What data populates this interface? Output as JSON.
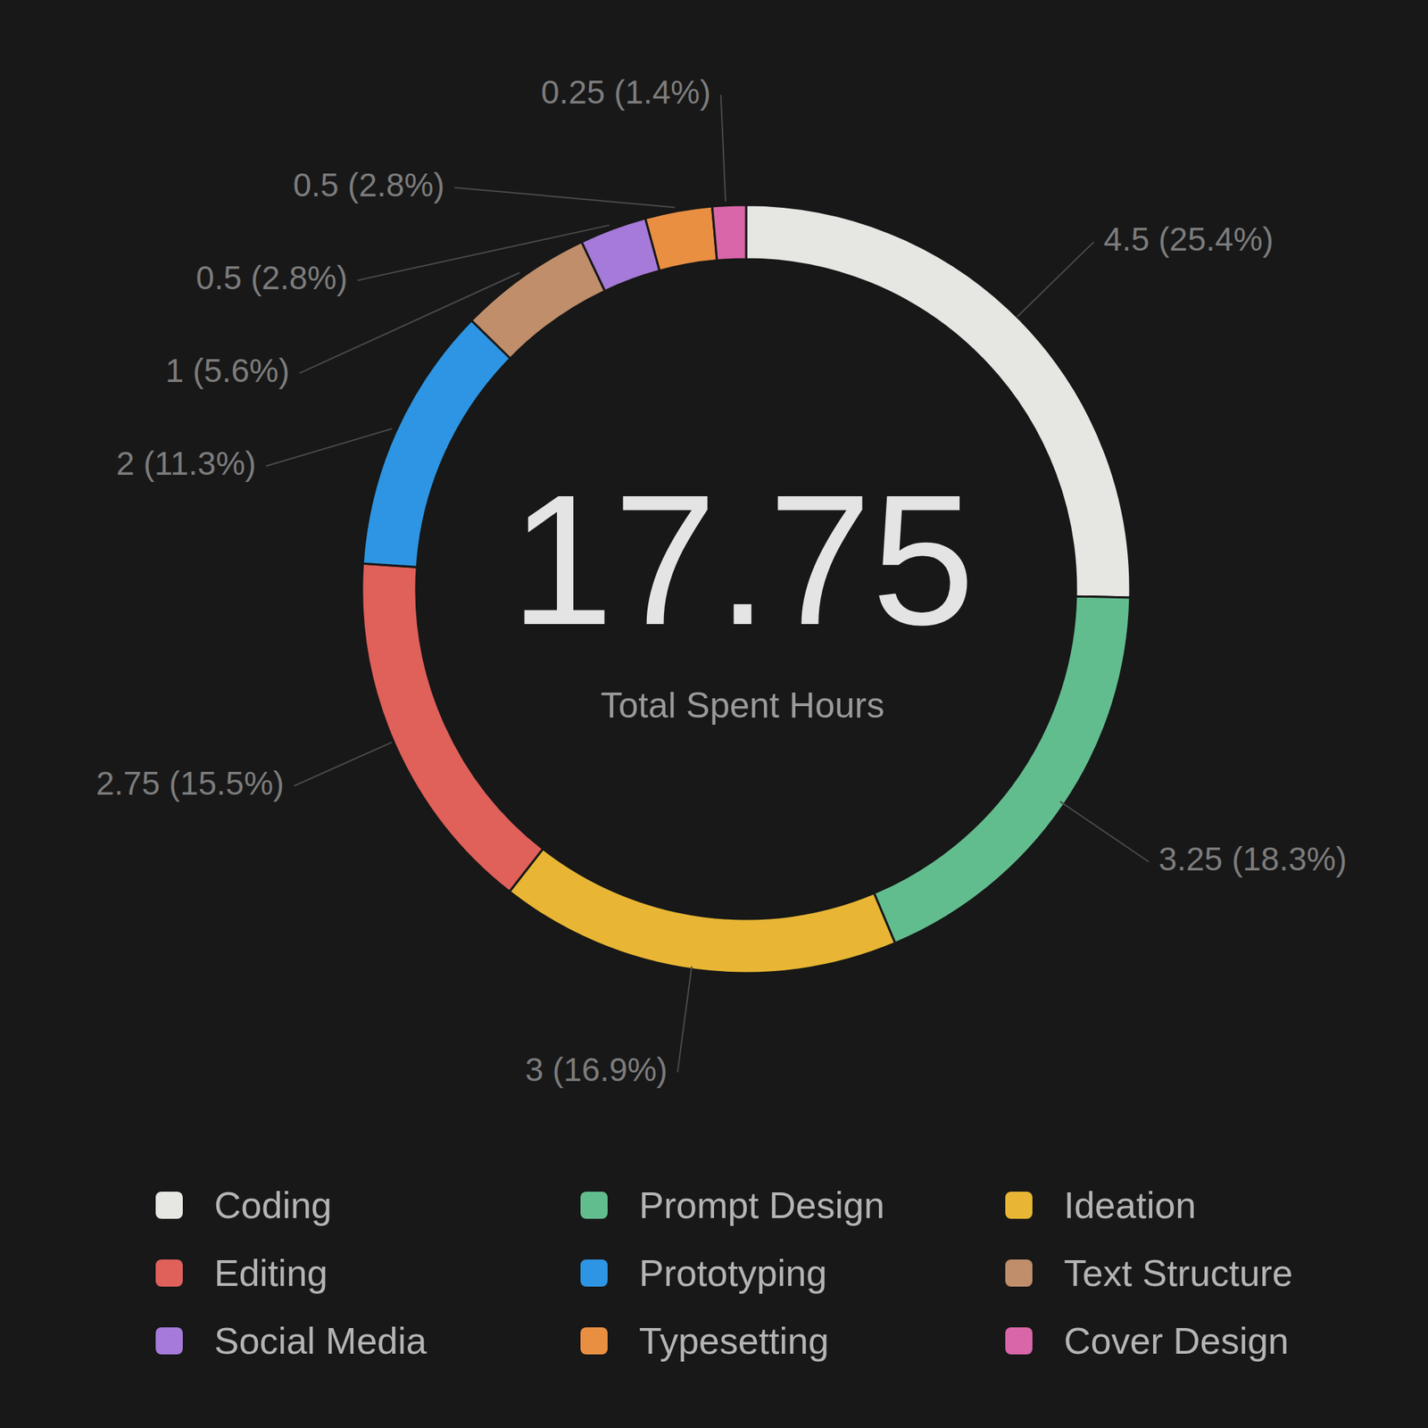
{
  "chart_data": {
    "type": "donut",
    "categories": [
      "Coding",
      "Prompt Design",
      "Ideation",
      "Editing",
      "Prototyping",
      "Text Structure",
      "Social Media",
      "Typesetting",
      "Cover Design"
    ],
    "values": [
      4.5,
      3.25,
      3,
      2.75,
      2,
      1,
      0.5,
      0.5,
      0.25
    ],
    "value_labels": [
      "4.5 (25.4%)",
      "3.25 (18.3%)",
      "3 (16.9%)",
      "2.75 (15.5%)",
      "2 (11.3%)",
      "1 (5.6%)",
      "0.5 (2.8%)",
      "0.5 (2.8%)",
      "0.25 (1.4%)"
    ],
    "colors": [
      "#e6e6e3",
      "#62bd8e",
      "#e8b634",
      "#e0605a",
      "#2d95e3",
      "#c08e6a",
      "#a57ad9",
      "#e98f42",
      "#d966a8"
    ],
    "data_labels": true,
    "legend": "bottom",
    "center_value": 17.75,
    "center_label": "Total Spent Hours"
  }
}
